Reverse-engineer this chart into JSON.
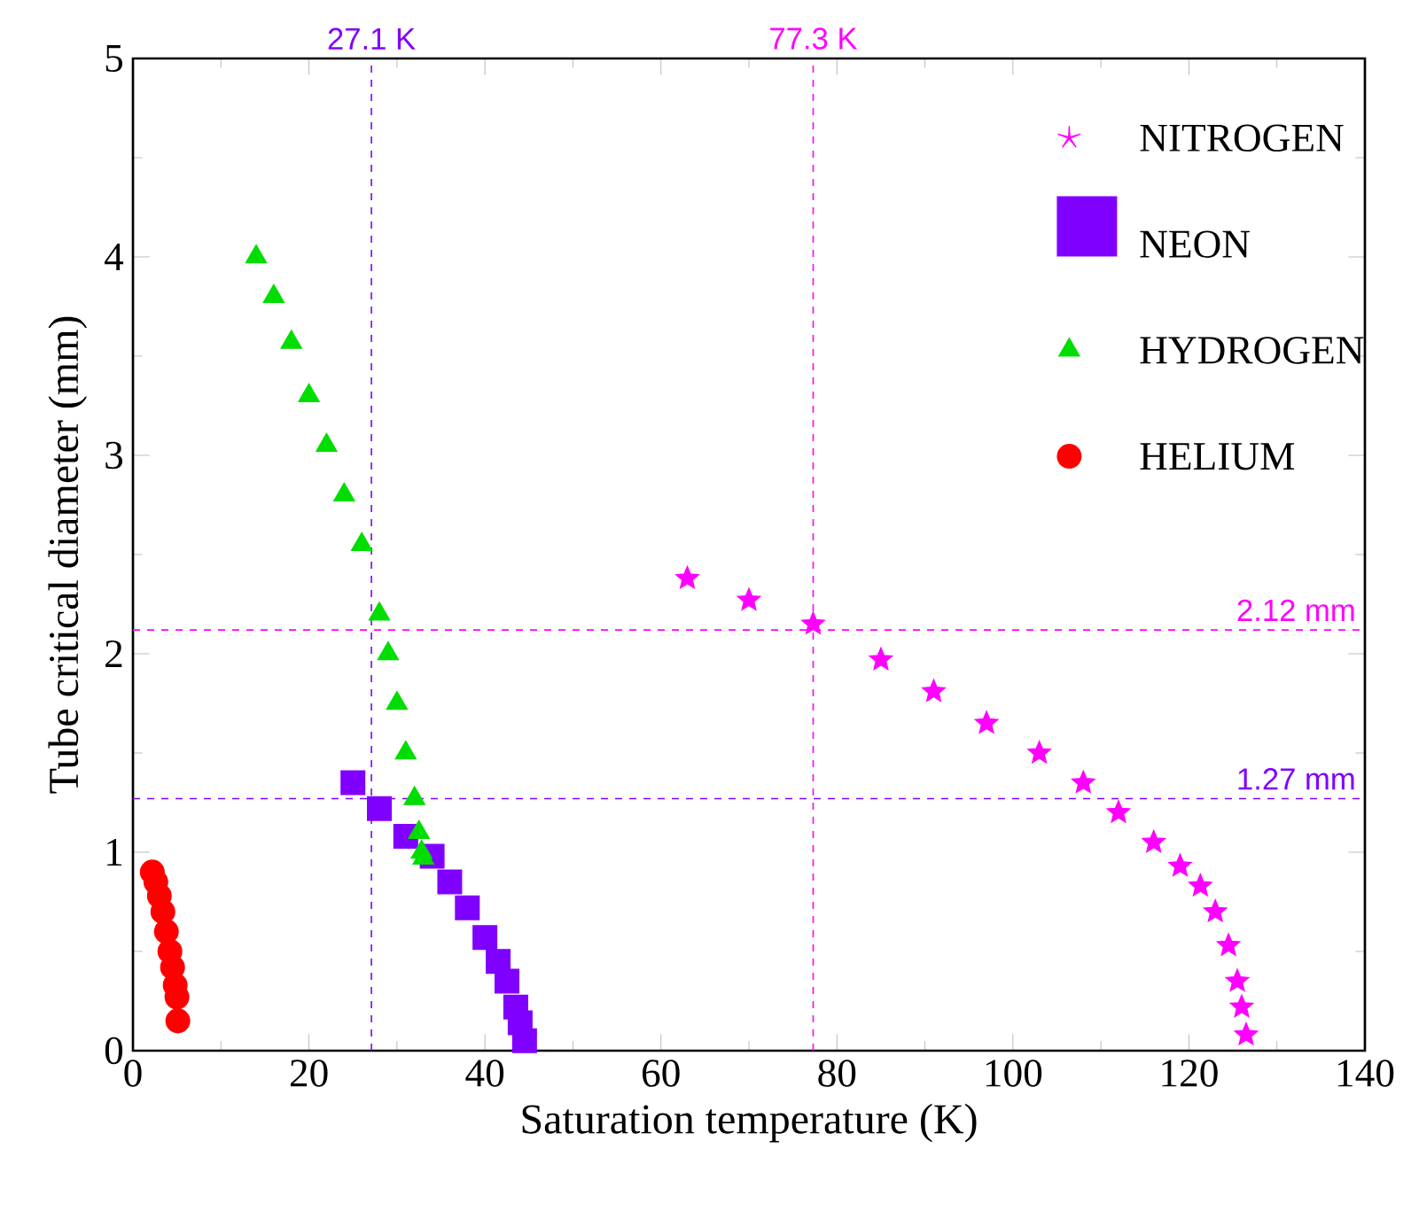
{
  "chart_data": {
    "type": "scatter",
    "xlabel": "Saturation temperature (K)",
    "ylabel": "Tube critical diameter (mm)",
    "xlim": [
      0,
      140
    ],
    "ylim": [
      0,
      5
    ],
    "xticks": [
      0,
      20,
      40,
      60,
      80,
      100,
      120,
      140
    ],
    "yticks": [
      0,
      1,
      2,
      3,
      4,
      5
    ],
    "grid": false,
    "legend": "top right",
    "series": [
      {
        "name": "NITROGEN",
        "color": "#ff00ff",
        "marker": "star",
        "x": [
          63,
          70,
          77.3,
          85,
          91,
          97,
          103,
          108,
          112,
          116,
          119,
          121.3,
          123,
          124.5,
          125.5,
          126,
          126.5
        ],
        "values": [
          2.38,
          2.27,
          2.15,
          1.97,
          1.81,
          1.65,
          1.5,
          1.35,
          1.2,
          1.05,
          0.93,
          0.83,
          0.7,
          0.53,
          0.35,
          0.22,
          0.08
        ]
      },
      {
        "name": "NEON",
        "color": "#8000ff",
        "marker": "square",
        "x": [
          25,
          28,
          31,
          34,
          36,
          38,
          40,
          41.5,
          42.5,
          43.5,
          44,
          44.5
        ],
        "values": [
          1.35,
          1.22,
          1.08,
          0.98,
          0.85,
          0.72,
          0.57,
          0.45,
          0.35,
          0.22,
          0.14,
          0.05
        ]
      },
      {
        "name": "HYDROGEN",
        "color": "#00dd00",
        "marker": "triangle",
        "x": [
          14,
          16,
          18,
          20,
          22,
          24,
          26,
          28,
          29,
          30,
          31,
          32,
          32.5,
          32.8,
          33
        ],
        "values": [
          4.0,
          3.8,
          3.57,
          3.3,
          3.05,
          2.8,
          2.55,
          2.2,
          2.0,
          1.75,
          1.5,
          1.27,
          1.1,
          1.0,
          0.97
        ]
      },
      {
        "name": "HELIUM",
        "color": "#ff0000",
        "marker": "circle",
        "x": [
          2.2,
          2.6,
          3.0,
          3.4,
          3.8,
          4.2,
          4.5,
          4.8,
          5.0,
          5.1
        ],
        "values": [
          0.9,
          0.85,
          0.78,
          0.7,
          0.6,
          0.5,
          0.42,
          0.33,
          0.27,
          0.15
        ]
      }
    ],
    "ref_lines": [
      {
        "axis": "x",
        "value": 27.1,
        "label": "27.1 K",
        "color": "#8000ff",
        "line_style": "dashed"
      },
      {
        "axis": "x",
        "value": 77.3,
        "label": "77.3 K",
        "color": "#ff00ff",
        "line_style": "dashed"
      },
      {
        "axis": "y",
        "value": 2.12,
        "label": "2.12 mm",
        "color": "#ff00ff",
        "line_style": "dashed"
      },
      {
        "axis": "y",
        "value": 1.27,
        "label": "1.27 mm",
        "color": "#8000ff",
        "line_style": "dashed"
      }
    ]
  }
}
